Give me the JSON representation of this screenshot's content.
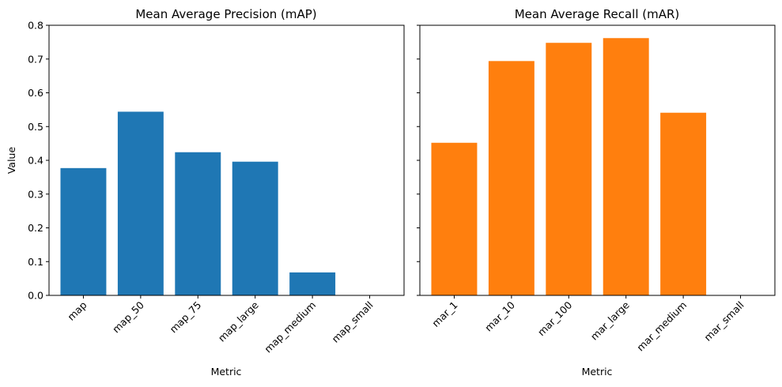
{
  "chart_data": [
    {
      "type": "bar",
      "title": "Mean Average Precision (mAP)",
      "xlabel": "Metric",
      "ylabel": "Value",
      "categories": [
        "map",
        "map_50",
        "map_75",
        "map_large",
        "map_medium",
        "map_small"
      ],
      "values": [
        0.377,
        0.544,
        0.424,
        0.396,
        0.068,
        0.0
      ],
      "color": "#1f77b4",
      "ylim": [
        0,
        0.8
      ],
      "yticks": [
        "0.0",
        "0.1",
        "0.2",
        "0.3",
        "0.4",
        "0.5",
        "0.6",
        "0.7",
        "0.8"
      ],
      "grid": false
    },
    {
      "type": "bar",
      "title": "Mean Average Recall (mAR)",
      "xlabel": "Metric",
      "ylabel": "",
      "categories": [
        "mar_1",
        "mar_10",
        "mar_100",
        "mar_large",
        "mar_medium",
        "mar_small"
      ],
      "values": [
        0.452,
        0.694,
        0.748,
        0.762,
        0.541,
        0.0
      ],
      "color": "#ff7f0e",
      "ylim": [
        0,
        0.8
      ],
      "yticks": [],
      "grid": false
    }
  ]
}
